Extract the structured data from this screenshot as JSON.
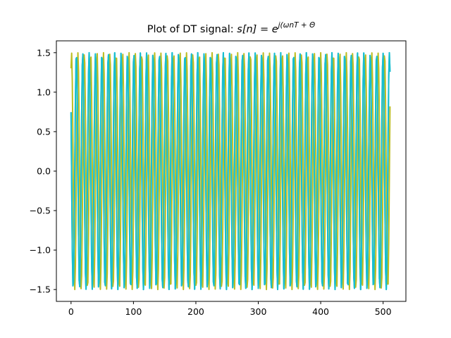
{
  "chart_data": {
    "type": "line",
    "title": {
      "prefix": "Plot of DT signal: ",
      "math": {
        "lhs": "s[n] = e",
        "exponent": "j(ωnT + Θ"
      }
    },
    "xlabel": "",
    "ylabel": "",
    "xlim": [
      -23.5,
      536.5
    ],
    "ylim": [
      -1.65,
      1.65
    ],
    "x_ticks": [
      {
        "value": 0,
        "label": "0"
      },
      {
        "value": 100,
        "label": "100"
      },
      {
        "value": 200,
        "label": "200"
      },
      {
        "value": 300,
        "label": "300"
      },
      {
        "value": 400,
        "label": "400"
      },
      {
        "value": 500,
        "label": "500"
      }
    ],
    "y_ticks": [
      {
        "value": -1.5,
        "label": "−1.5"
      },
      {
        "value": -1.0,
        "label": "−1.0"
      },
      {
        "value": -0.5,
        "label": "−0.5"
      },
      {
        "value": 0.0,
        "label": "0.0"
      },
      {
        "value": 0.5,
        "label": "0.5"
      },
      {
        "value": 1.0,
        "label": "1.0"
      },
      {
        "value": 1.5,
        "label": "1.5"
      }
    ],
    "grid": false,
    "series": [
      {
        "color": "#17becf",
        "line_width": 2,
        "signal": {
          "n_start": 0,
          "n_end": 511,
          "amplitude": 1.5,
          "cycles_per_sample": 0.0977,
          "phase_rad": 1.05,
          "function": "cos"
        }
      },
      {
        "color": "#bcbd22",
        "line_width": 2,
        "signal": {
          "n_start": 0,
          "n_end": 511,
          "amplitude": 1.5,
          "cycles_per_sample": 0.0977,
          "phase_rad": -0.52,
          "function": "cos"
        }
      }
    ],
    "overlay_color": "#7f7f7f"
  }
}
